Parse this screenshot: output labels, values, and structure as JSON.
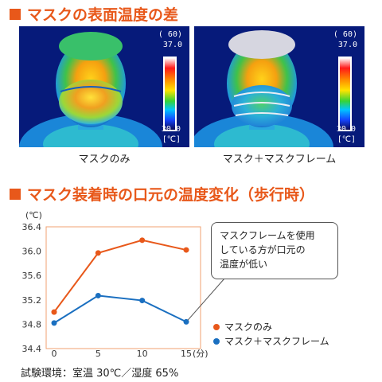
{
  "section1": {
    "title": "マスクの表面温度の差"
  },
  "section2": {
    "title": "マスク装着時の口元の温度変化（歩行時）"
  },
  "thermal_images": [
    {
      "caption": "マスクのみ",
      "scale_label": "( 60)",
      "max": "37.0",
      "min": "30.0",
      "unit": "[℃]"
    },
    {
      "caption": "マスク＋マスクフレーム",
      "scale_label": "( 60)",
      "max": "37.0",
      "min": "30.0",
      "unit": "[℃]"
    }
  ],
  "callout": {
    "lines": [
      "マスクフレームを使用",
      "している方が口元の",
      "温度が低い"
    ]
  },
  "footnote": "試験環境：室温 30℃／湿度 65%",
  "colors": {
    "accent": "#e8581a",
    "series_orange": "#e8581a",
    "series_blue": "#1a6fc0",
    "plot_border": "#f0a070"
  },
  "chart_data": {
    "type": "line",
    "x": [
      0,
      5,
      10,
      15
    ],
    "x_tick_labels": [
      "0",
      "5",
      "10",
      "15"
    ],
    "x_unit_label": "(分)",
    "y_unit_label": "(℃)",
    "ylim": [
      34.4,
      36.4
    ],
    "y_ticks": [
      34.4,
      34.8,
      35.2,
      35.6,
      36.0,
      36.4
    ],
    "y_tick_labels": [
      "34.4",
      "34.8",
      "35.2",
      "35.6",
      "36.0",
      "36.4"
    ],
    "grid": false,
    "legend_position": "right",
    "series": [
      {
        "name": "マスクのみ",
        "color": "#e8581a",
        "values": [
          35.0,
          35.97,
          36.18,
          36.02
        ]
      },
      {
        "name": "マスク＋マスクフレーム",
        "color": "#1a6fc0",
        "values": [
          34.82,
          35.27,
          35.19,
          34.84
        ]
      }
    ]
  }
}
